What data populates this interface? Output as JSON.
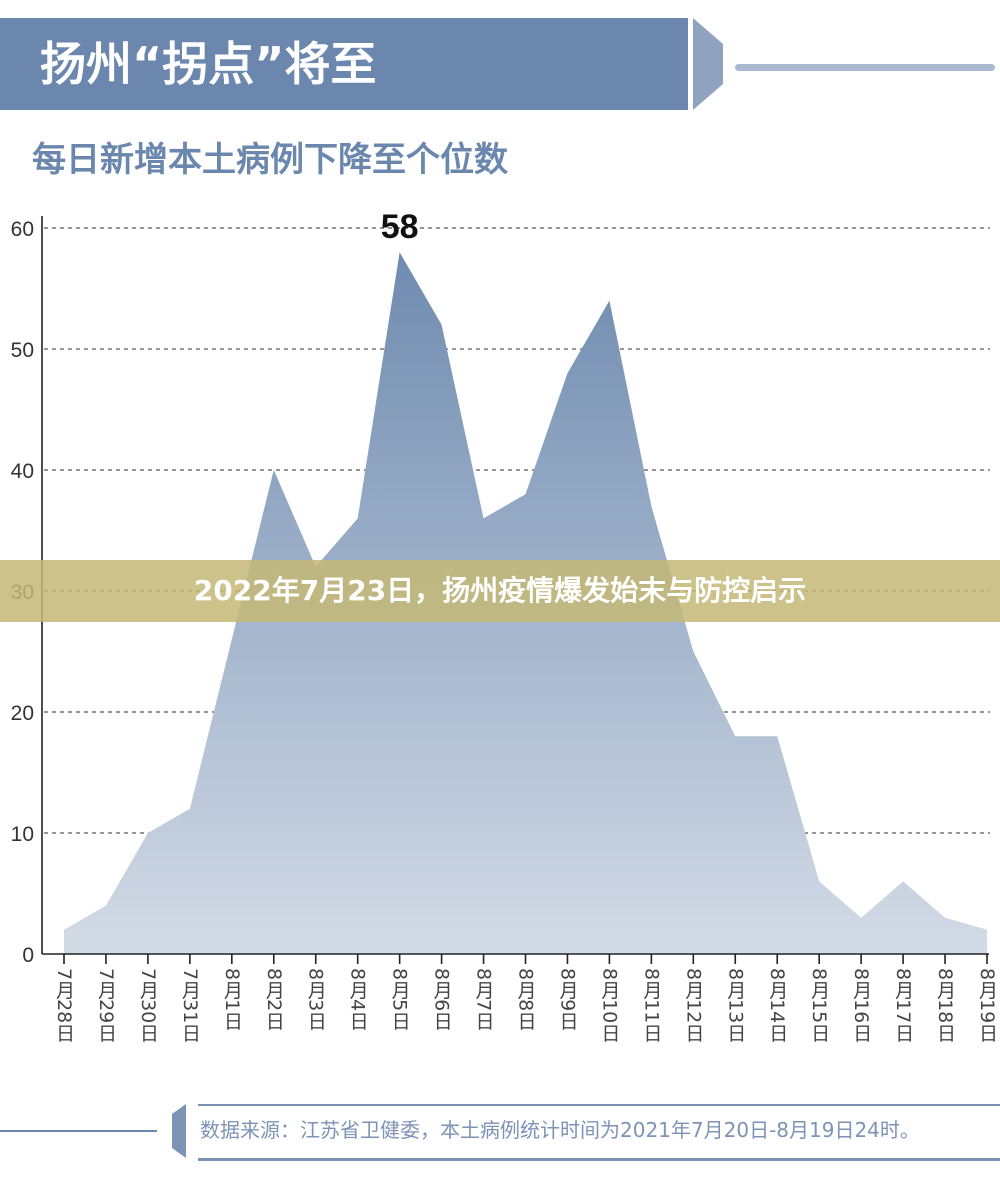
{
  "header": {
    "title": "扬州“拐点”将至",
    "subtitle": "每日新增本土病例下降至个位数"
  },
  "banner": {
    "text": "2022年7月23日，扬州疫情爆发始末与防控启示"
  },
  "source": {
    "text": "数据来源：江苏省卫健委，本土病例统计时间为2021年7月20日-8月19日24时。"
  },
  "colors": {
    "accent": "#6b87ad",
    "fill_top": "#6f8bb0",
    "fill_bottom": "#d3dbe6",
    "banner": "#c4b876"
  },
  "chart_data": {
    "type": "area",
    "title": "",
    "xlabel": "",
    "ylabel": "",
    "ylim": [
      0,
      60
    ],
    "yticks": [
      0,
      10,
      20,
      30,
      40,
      50,
      60
    ],
    "grid": true,
    "categories": [
      "7月28日",
      "7月29日",
      "7月30日",
      "7月31日",
      "8月1日",
      "8月2日",
      "8月3日",
      "8月4日",
      "8月5日",
      "8月6日",
      "8月7日",
      "8月8日",
      "8月9日",
      "8月10日",
      "8月11日",
      "8月12日",
      "8月13日",
      "8月14日",
      "8月15日",
      "8月16日",
      "8月17日",
      "8月18日",
      "8月19日"
    ],
    "values": [
      2,
      4,
      10,
      12,
      26,
      40,
      32,
      36,
      58,
      52,
      36,
      38,
      48,
      54,
      37,
      25,
      18,
      18,
      6,
      3,
      6,
      3,
      2
    ],
    "annotations": [
      {
        "category": "8月5日",
        "text": "58"
      }
    ]
  }
}
